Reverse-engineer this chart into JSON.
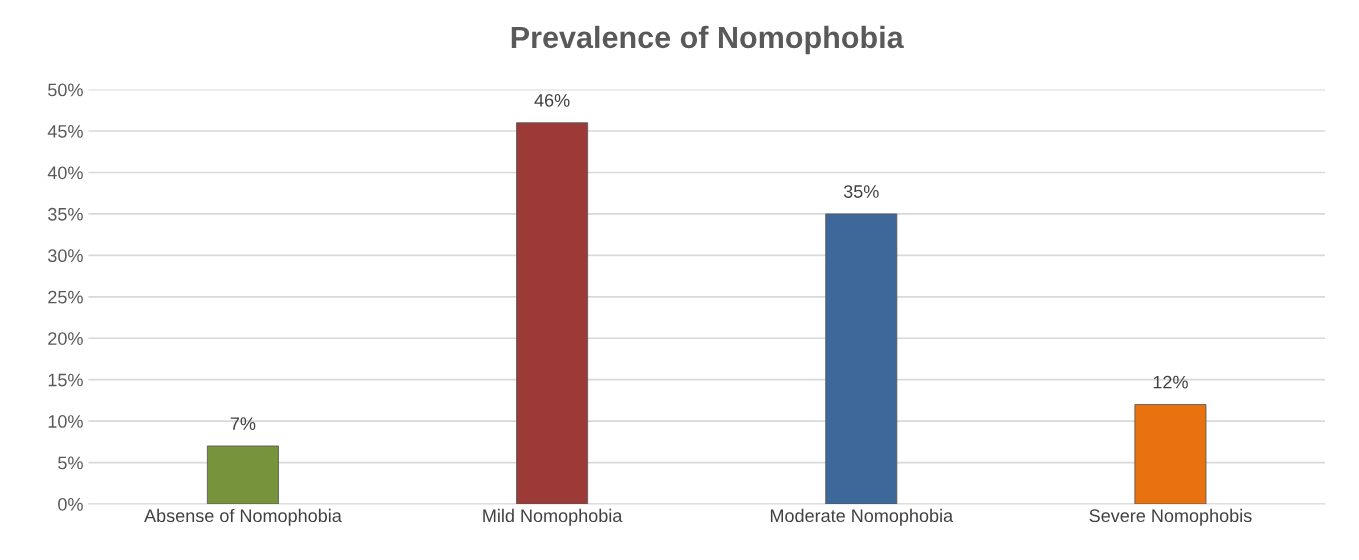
{
  "chart_data": {
    "type": "bar",
    "title": "Prevalence of Nomophobia",
    "categories": [
      "Absense of Nomophobia",
      "Mild Nomophobia",
      "Moderate Nomophobia",
      "Severe Nomophobis"
    ],
    "values": [
      7,
      46,
      35,
      12
    ],
    "colors": [
      "#77933c",
      "#9c3a38",
      "#3d6899",
      "#e8720f"
    ],
    "value_labels": [
      "7%",
      "46%",
      "35%",
      "12%"
    ],
    "ylim": [
      0,
      50
    ],
    "yticks": [
      {
        "value": 0,
        "label": "0%"
      },
      {
        "value": 5,
        "label": "5%"
      },
      {
        "value": 10,
        "label": "10%"
      },
      {
        "value": 15,
        "label": "15%"
      },
      {
        "value": 20,
        "label": "20%"
      },
      {
        "value": 25,
        "label": "25%"
      },
      {
        "value": 30,
        "label": "30%"
      },
      {
        "value": 35,
        "label": "35%"
      },
      {
        "value": 40,
        "label": "40%"
      },
      {
        "value": 45,
        "label": "45%"
      },
      {
        "value": 50,
        "label": "50%"
      }
    ],
    "grid": "y",
    "legend": false
  }
}
